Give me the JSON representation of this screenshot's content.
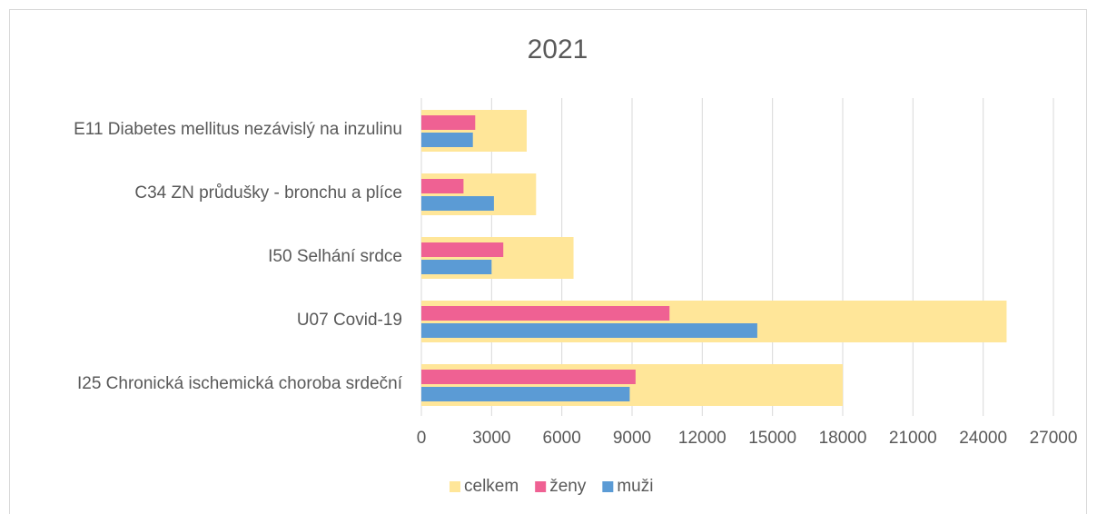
{
  "chart_data": {
    "type": "bar",
    "title": "2021",
    "categories": [
      "E11 Diabetes mellitus nezávislý na inzulinu",
      "C34 ZN průdušky - bronchu a plíce",
      "I50 Selhání srdce",
      "U07 Covid-19",
      "I25 Chronická ischemická choroba srdeční"
    ],
    "series": [
      {
        "name": "celkem",
        "color": "#ffe699",
        "values": [
          4500,
          4900,
          6500,
          25000,
          18000
        ]
      },
      {
        "name": "ženy",
        "color": "#ef6193",
        "values": [
          2300,
          1800,
          3500,
          10600,
          9150
        ]
      },
      {
        "name": "muži",
        "color": "#5b9bd5",
        "values": [
          2200,
          3100,
          3000,
          14350,
          8900
        ]
      }
    ],
    "xlim": [
      0,
      27000
    ],
    "xticks": [
      0,
      3000,
      6000,
      9000,
      12000,
      15000,
      18000,
      21000,
      24000,
      27000
    ],
    "grid": true,
    "legend": "bottom"
  }
}
